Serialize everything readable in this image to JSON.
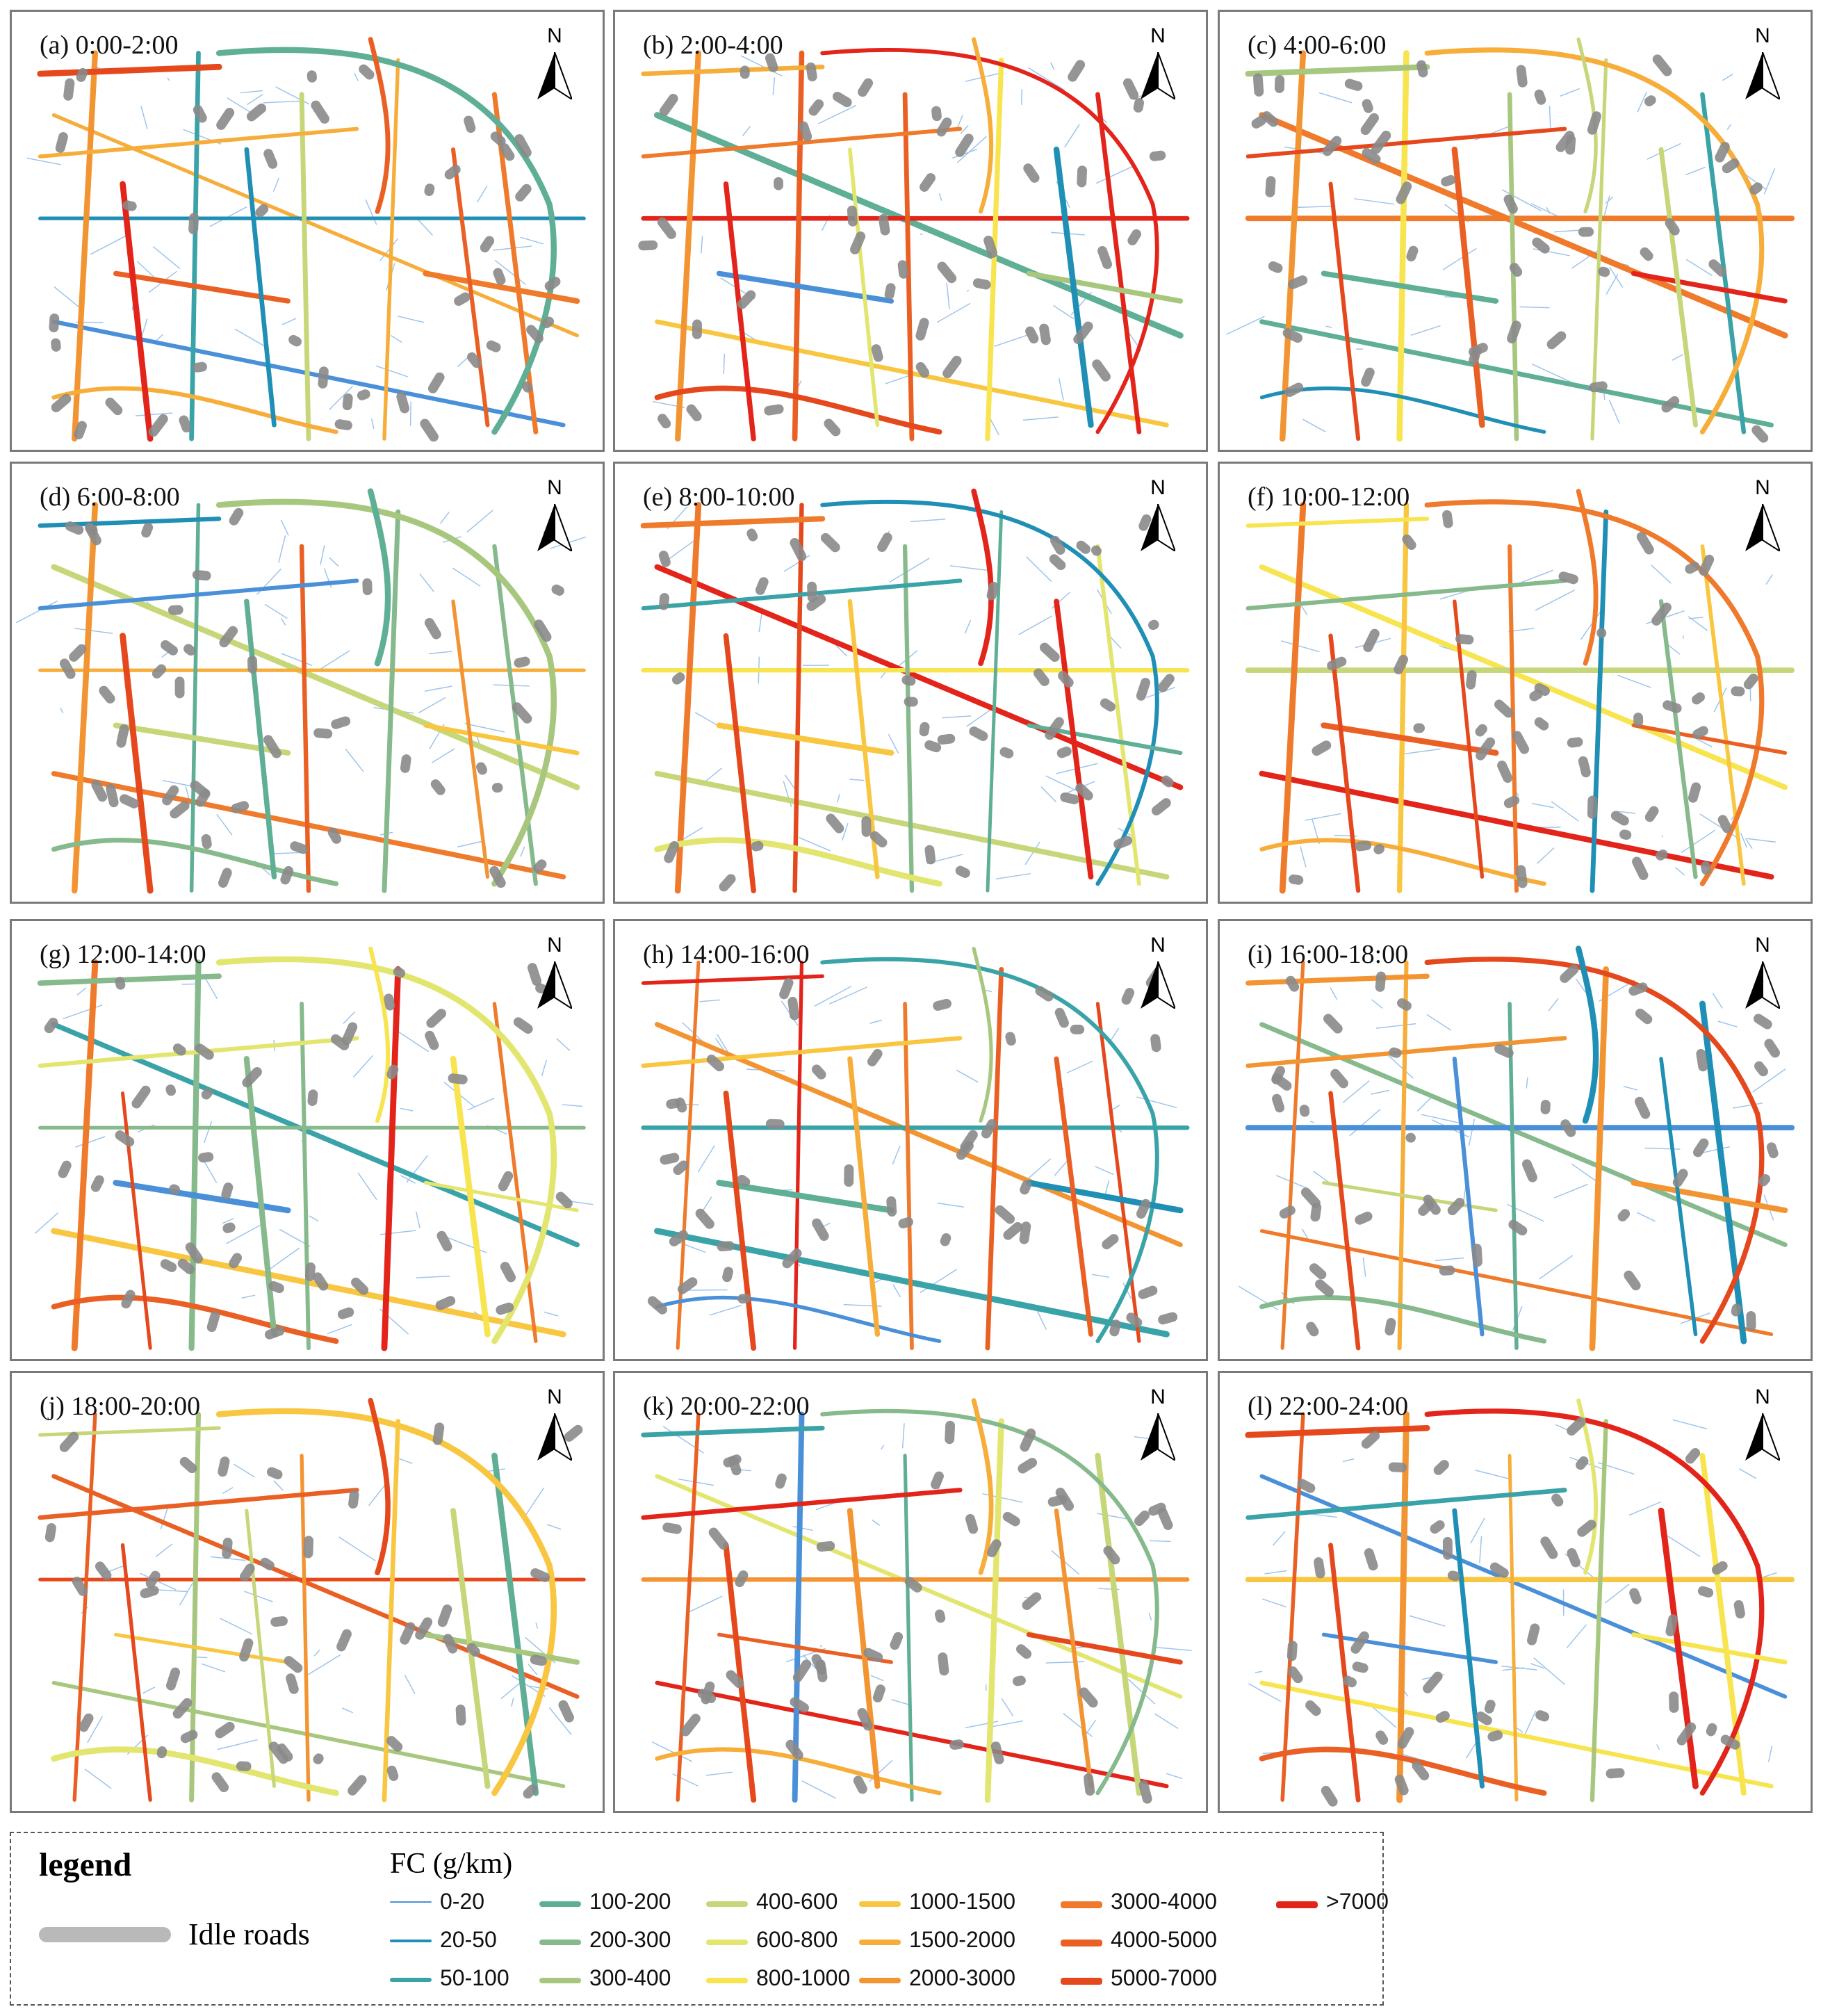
{
  "panels": [
    {
      "label": "(a)  0:00-2:00"
    },
    {
      "label": "(b) 2:00-4:00"
    },
    {
      "label": "(c) 4:00-6:00"
    },
    {
      "label": "(d) 6:00-8:00"
    },
    {
      "label": "(e) 8:00-10:00"
    },
    {
      "label": "(f) 10:00-12:00"
    },
    {
      "label": "(g) 12:00-14:00"
    },
    {
      "label": "(h) 14:00-16:00"
    },
    {
      "label": "(i) 16:00-18:00"
    },
    {
      "label": "(j) 18:00-20:00"
    },
    {
      "label": "(k) 20:00-22:00"
    },
    {
      "label": "(l) 22:00-24:00"
    }
  ],
  "north_label": "N",
  "legend": {
    "title": "legend",
    "idle_label": "Idle roads",
    "idle_color": "#b9b9b9",
    "fc_title": "FC (g/km)",
    "classes": [
      {
        "label": "0-20",
        "color": "#4a90d9"
      },
      {
        "label": "20-50",
        "color": "#1f8fb6"
      },
      {
        "label": "50-100",
        "color": "#3aa3a8"
      },
      {
        "label": "100-200",
        "color": "#5fae96"
      },
      {
        "label": "200-300",
        "color": "#86b98c"
      },
      {
        "label": "300-400",
        "color": "#a7c77f"
      },
      {
        "label": "400-600",
        "color": "#c5d778"
      },
      {
        "label": "600-800",
        "color": "#e2e66f"
      },
      {
        "label": "800-1000",
        "color": "#f7e44f"
      },
      {
        "label": "1000-1500",
        "color": "#f8c640"
      },
      {
        "label": "1500-2000",
        "color": "#f6ad3a"
      },
      {
        "label": "2000-3000",
        "color": "#f39433"
      },
      {
        "label": "3000-4000",
        "color": "#ef7a2c"
      },
      {
        "label": "4000-5000",
        "color": "#ea6024"
      },
      {
        "label": "5000-7000",
        "color": "#e5481d"
      },
      {
        "label": ">7000",
        "color": "#e3241a"
      }
    ]
  }
}
